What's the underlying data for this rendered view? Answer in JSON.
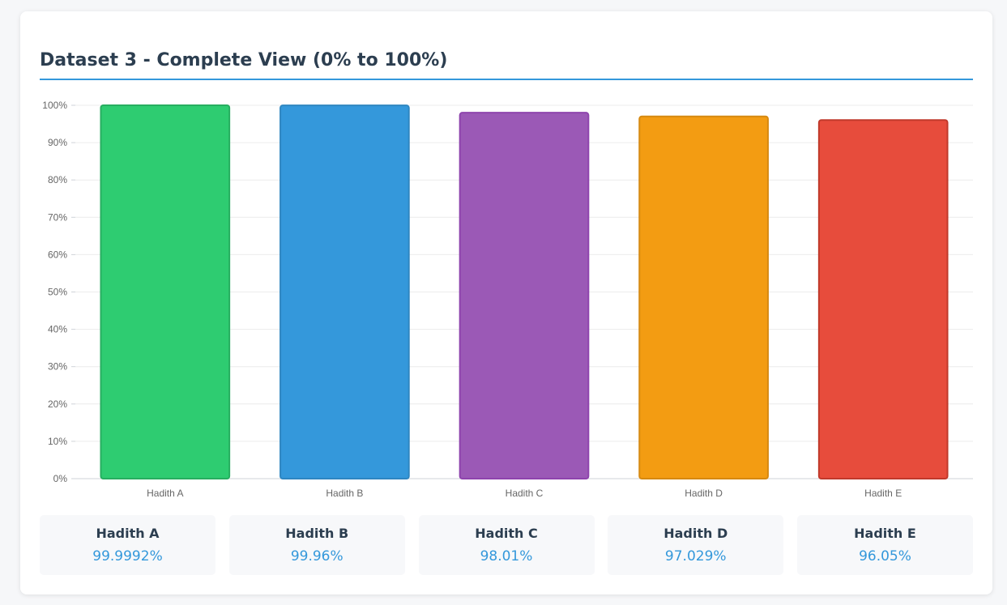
{
  "header": {
    "title": "Dataset 3 - Complete View (0% to 100%)"
  },
  "chart_data": {
    "type": "bar",
    "title": "Dataset 3 - Complete View (0% to 100%)",
    "categories": [
      "Hadith A",
      "Hadith B",
      "Hadith C",
      "Hadith D",
      "Hadith E"
    ],
    "values": [
      99.9992,
      99.96,
      98.01,
      97.029,
      96.05
    ],
    "colors": [
      "#2ecc71",
      "#3498db",
      "#9b59b6",
      "#f39c12",
      "#e74c3c"
    ],
    "border_colors": [
      "#27ae60",
      "#2e86c1",
      "#8e44ad",
      "#d68910",
      "#c0392b"
    ],
    "ylim": [
      0,
      100
    ],
    "yticks": [
      0,
      10,
      20,
      30,
      40,
      50,
      60,
      70,
      80,
      90,
      100
    ],
    "ytick_labels": [
      "0%",
      "10%",
      "20%",
      "30%",
      "40%",
      "50%",
      "60%",
      "70%",
      "80%",
      "90%",
      "100%"
    ],
    "grid": true,
    "legend": "none"
  },
  "stats": [
    {
      "name": "Hadith A",
      "value": "99.9992%"
    },
    {
      "name": "Hadith B",
      "value": "99.96%"
    },
    {
      "name": "Hadith C",
      "value": "98.01%"
    },
    {
      "name": "Hadith D",
      "value": "97.029%"
    },
    {
      "name": "Hadith E",
      "value": "96.05%"
    }
  ]
}
